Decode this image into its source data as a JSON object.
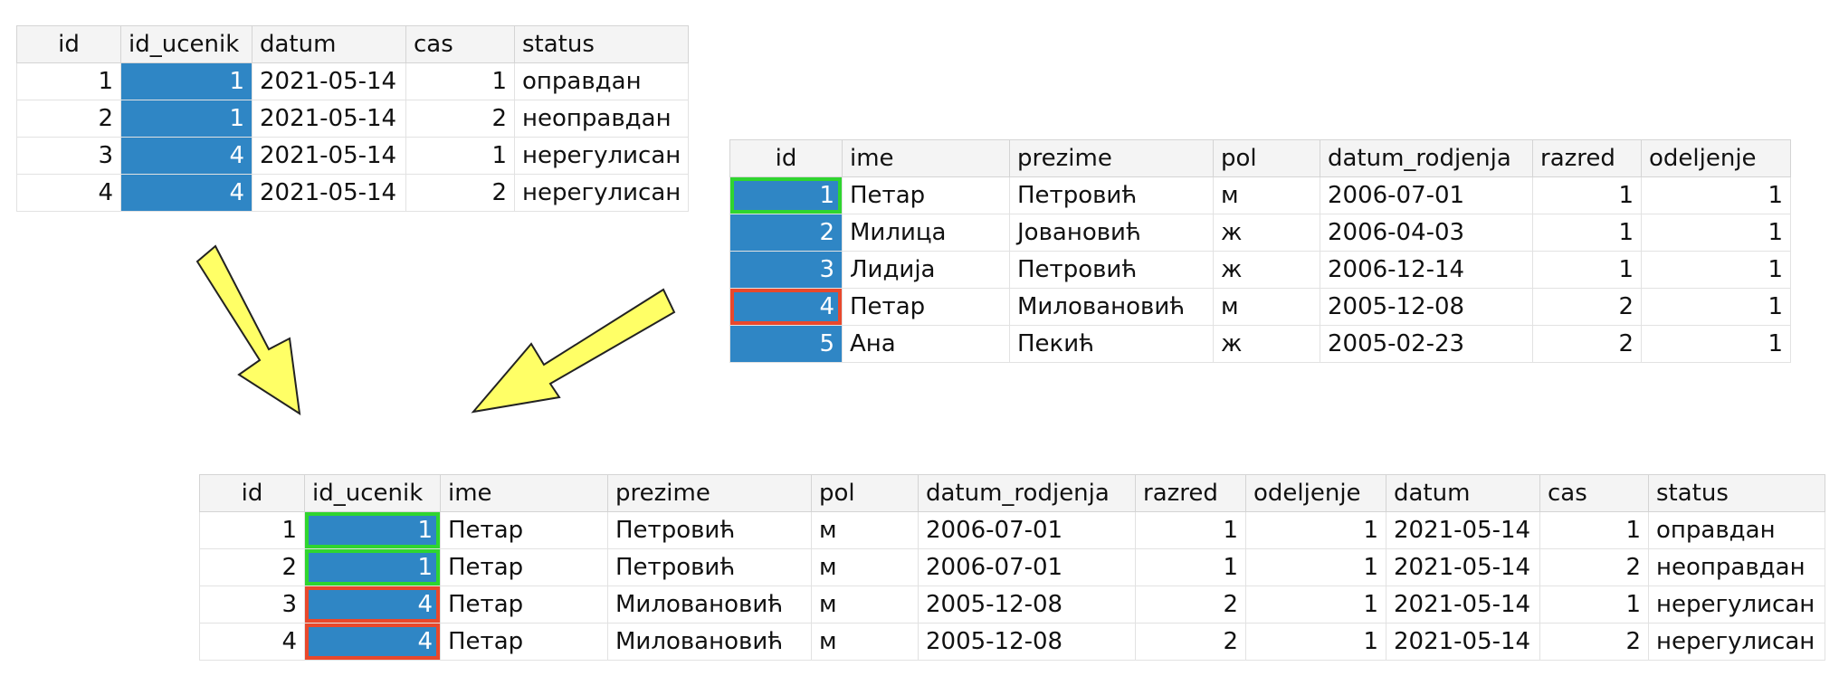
{
  "table_apsencije": {
    "columns": [
      "id",
      "id_ucenik",
      "datum",
      "cas",
      "status"
    ],
    "rows": [
      [
        "1",
        "1",
        "2021-05-14",
        "1",
        "оправдан"
      ],
      [
        "2",
        "1",
        "2021-05-14",
        "2",
        "неоправдан"
      ],
      [
        "3",
        "4",
        "2021-05-14",
        "1",
        "нерегулисан"
      ],
      [
        "4",
        "4",
        "2021-05-14",
        "2",
        "нерегулисан"
      ]
    ]
  },
  "table_ucenici": {
    "columns": [
      "id",
      "ime",
      "prezime",
      "pol",
      "datum_rodjenja",
      "razred",
      "odeljenje"
    ],
    "rows": [
      [
        "1",
        "Петар",
        "Петровић",
        "м",
        "2006-07-01",
        "1",
        "1"
      ],
      [
        "2",
        "Милица",
        "Јовановић",
        "ж",
        "2006-04-03",
        "1",
        "1"
      ],
      [
        "3",
        "Лидија",
        "Петровић",
        "ж",
        "2006-12-14",
        "1",
        "1"
      ],
      [
        "4",
        "Петар",
        "Миловановић",
        "м",
        "2005-12-08",
        "2",
        "1"
      ],
      [
        "5",
        "Ана",
        "Пекић",
        "ж",
        "2005-02-23",
        "2",
        "1"
      ]
    ]
  },
  "table_spoj": {
    "columns": [
      "id",
      "id_ucenik",
      "ime",
      "prezime",
      "pol",
      "datum_rodjenja",
      "razred",
      "odeljenje",
      "datum",
      "cas",
      "status"
    ],
    "rows": [
      [
        "1",
        "1",
        "Петар",
        "Петровић",
        "м",
        "2006-07-01",
        "1",
        "1",
        "2021-05-14",
        "1",
        "оправдан"
      ],
      [
        "2",
        "1",
        "Петар",
        "Петровић",
        "м",
        "2006-07-01",
        "1",
        "1",
        "2021-05-14",
        "2",
        "неоправдан"
      ],
      [
        "3",
        "4",
        "Петар",
        "Миловановић",
        "м",
        "2005-12-08",
        "2",
        "1",
        "2021-05-14",
        "1",
        "нерегулисан"
      ],
      [
        "4",
        "4",
        "Петар",
        "Миловановић",
        "м",
        "2005-12-08",
        "2",
        "1",
        "2021-05-14",
        "2",
        "нерегулисан"
      ]
    ]
  },
  "colors": {
    "selection": "#2f86c5",
    "match_green": "#2fd52f",
    "match_red": "#e8482c",
    "arrow_fill": "#ffff66"
  }
}
